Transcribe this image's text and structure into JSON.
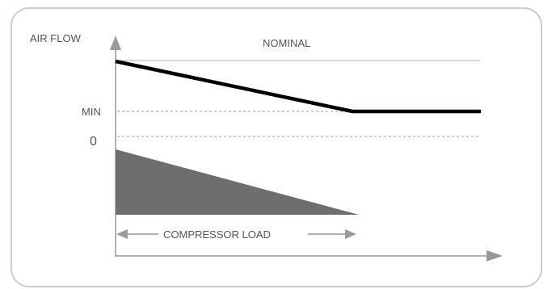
{
  "diagram": {
    "y_axis_label": "AIR FLOW",
    "levels": {
      "nominal": "NOMINAL",
      "min": "MIN",
      "zero": "0"
    },
    "x_axis_range_label": "COMPRESSOR LOAD",
    "colors": {
      "axis": "#999999",
      "nominal_line": "#cccccc",
      "dashed_guides": "#999999",
      "airflow_curve": "#000000",
      "compressor_load_fill": "#6e6e6e",
      "border": "#cccccc",
      "label_text": "#444444"
    }
  }
}
